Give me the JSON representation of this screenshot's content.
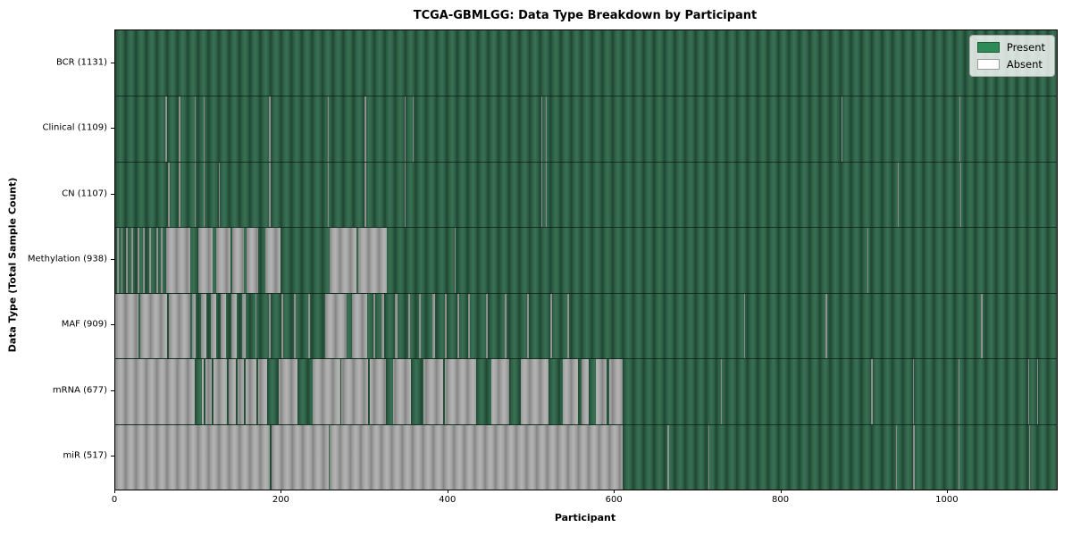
{
  "chart_data": {
    "type": "heatmap",
    "title": "TCGA-GBMLGG: Data Type Breakdown by Participant",
    "xlabel": "Participant",
    "ylabel": "Data Type (Total Sample Count)",
    "x_ticks": [
      0,
      200,
      400,
      600,
      800,
      1000
    ],
    "x_range": [
      0,
      1131
    ],
    "grid": false,
    "legend": {
      "position": "upper-right",
      "items": [
        {
          "label": "Present",
          "color": "#2e8b57",
          "edge": "#1d5c39"
        },
        {
          "label": "Absent",
          "color": "#ffffff",
          "edge": "#9a9a9a"
        }
      ]
    },
    "colors": {
      "present_base": "#2f6248",
      "present_stripe_dark": "#1e4732",
      "absent_base": "#a3a3a3",
      "absent_stripe_dark": "#858585",
      "background": "#ffffff"
    },
    "rows": [
      {
        "key": "bcr",
        "label": "BCR (1131)",
        "present_count": 1131,
        "absent_runs": [],
        "present_runs": []
      },
      {
        "key": "clinical",
        "label": "Clinical (1109)",
        "present_count": 1109,
        "absent_runs": [
          [
            60,
            62
          ],
          [
            76,
            78
          ],
          [
            96,
            97
          ],
          [
            106,
            107
          ],
          [
            185,
            187
          ],
          [
            255,
            256
          ],
          [
            299,
            301
          ],
          [
            348,
            349
          ],
          [
            357,
            358
          ],
          [
            418,
            419
          ],
          [
            512,
            513
          ],
          [
            517,
            518
          ],
          [
            872,
            873
          ],
          [
            1014,
            1015
          ]
        ],
        "present_runs": []
      },
      {
        "key": "cn",
        "label": "CN (1107)",
        "present_count": 1107,
        "absent_runs": [
          [
            63,
            65
          ],
          [
            76,
            78
          ],
          [
            96,
            97
          ],
          [
            106,
            107
          ],
          [
            125,
            126
          ],
          [
            185,
            187
          ],
          [
            255,
            256
          ],
          [
            299,
            301
          ],
          [
            348,
            349
          ],
          [
            418,
            419
          ],
          [
            512,
            513
          ],
          [
            517,
            518
          ],
          [
            940,
            941
          ],
          [
            1015,
            1016
          ]
        ],
        "present_runs": []
      },
      {
        "key": "methylation",
        "label": "Methylation (938)",
        "present_count": 938,
        "absent_runs": [
          [
            2,
            4
          ],
          [
            7,
            9
          ],
          [
            13,
            15
          ],
          [
            19,
            21
          ],
          [
            27,
            29
          ],
          [
            33,
            35
          ],
          [
            41,
            43
          ],
          [
            49,
            51
          ],
          [
            55,
            57
          ],
          [
            61,
            90
          ],
          [
            100,
            117
          ],
          [
            121,
            138
          ],
          [
            141,
            155
          ],
          [
            158,
            172
          ],
          [
            180,
            199
          ],
          [
            258,
            290
          ],
          [
            292,
            326
          ],
          [
            408,
            409
          ],
          [
            904,
            905
          ]
        ],
        "present_runs": []
      },
      {
        "key": "maf",
        "label": "MAF (909)",
        "present_count": 909,
        "absent_runs": [
          [
            0,
            28
          ],
          [
            30,
            62
          ],
          [
            64,
            90
          ],
          [
            92,
            97
          ],
          [
            103,
            109
          ],
          [
            115,
            121
          ],
          [
            127,
            133
          ],
          [
            140,
            146
          ],
          [
            152,
            157
          ],
          [
            168,
            170
          ],
          [
            185,
            187
          ],
          [
            200,
            202
          ],
          [
            215,
            217
          ],
          [
            232,
            234
          ],
          [
            252,
            278
          ],
          [
            284,
            303
          ],
          [
            310,
            312
          ],
          [
            320,
            323
          ],
          [
            336,
            339
          ],
          [
            352,
            354
          ],
          [
            365,
            367
          ],
          [
            381,
            384
          ],
          [
            396,
            398
          ],
          [
            411,
            413
          ],
          [
            424,
            426
          ],
          [
            445,
            447
          ],
          [
            468,
            470
          ],
          [
            495,
            497
          ],
          [
            523,
            525
          ],
          [
            543,
            545
          ],
          [
            755,
            757
          ],
          [
            853,
            855
          ],
          [
            1040,
            1042
          ]
        ],
        "present_runs": []
      },
      {
        "key": "mrna",
        "label": "mRNA (677)",
        "present_count": 677,
        "absent_runs": [
          [
            0,
            610
          ],
          [
            727,
            729
          ],
          [
            908,
            910
          ],
          [
            958,
            959
          ],
          [
            1013,
            1014
          ],
          [
            1097,
            1098
          ],
          [
            1107,
            1109
          ]
        ],
        "present_runs": [
          [
            96,
            104
          ],
          [
            106,
            108
          ],
          [
            116,
            118
          ],
          [
            134,
            136
          ],
          [
            145,
            147
          ],
          [
            155,
            157
          ],
          [
            170,
            172
          ],
          [
            182,
            196
          ],
          [
            219,
            237
          ],
          [
            270,
            272
          ],
          [
            304,
            306
          ],
          [
            325,
            334
          ],
          [
            355,
            370
          ],
          [
            394,
            396
          ],
          [
            434,
            452
          ],
          [
            473,
            487
          ],
          [
            520,
            538
          ],
          [
            556,
            560
          ],
          [
            569,
            577
          ],
          [
            590,
            593
          ]
        ]
      },
      {
        "key": "mir",
        "label": "miR (517)",
        "present_count": 517,
        "absent_runs": [
          [
            0,
            186
          ],
          [
            188,
            256
          ],
          [
            258,
            610
          ],
          [
            663,
            665
          ],
          [
            712,
            714
          ],
          [
            938,
            939
          ],
          [
            958,
            960
          ],
          [
            1013,
            1014
          ],
          [
            1098,
            1099
          ]
        ],
        "present_runs": []
      }
    ]
  }
}
